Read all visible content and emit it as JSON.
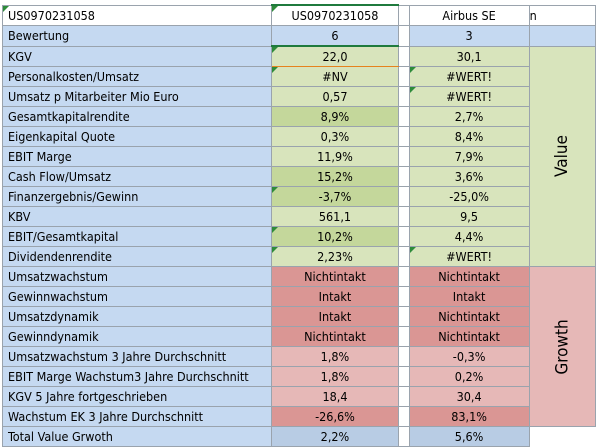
{
  "sheet": {
    "header": {
      "label": "US0970231058",
      "col1": "US0970231058",
      "col2": "Airbus SE",
      "col2_extra": "n"
    },
    "colors": {
      "label_bg": "#c5d9f1",
      "value_green": "#d8e4bc",
      "value_green_strong": "#c4d79b",
      "growth_pink": "#e6b8b7",
      "growth_red": "#da9694",
      "total_blue": "#b8cce4"
    },
    "side_labels": {
      "value": "Value",
      "growth": "Growth"
    },
    "rows": [
      {
        "label": "Bewertung",
        "v1": "6",
        "v2": "3"
      },
      {
        "label": "KGV",
        "v1": "22,0",
        "v2": "30,1"
      },
      {
        "label": "Personalkosten/Umsatz",
        "v1": "#NV",
        "v2": "#WERT!"
      },
      {
        "label": "Umsatz p Mitarbeiter Mio Euro",
        "v1": "0,57",
        "v2": "#WERT!"
      },
      {
        "label": "Gesamtkapitalrendite",
        "v1": "8,9%",
        "v2": "2,7%"
      },
      {
        "label": "Eigenkapital Quote",
        "v1": "0,3%",
        "v2": "8,4%"
      },
      {
        "label": "EBIT Marge",
        "v1": "11,9%",
        "v2": "7,9%"
      },
      {
        "label": "Cash Flow/Umsatz",
        "v1": "15,2%",
        "v2": "3,6%"
      },
      {
        "label": "Finanzergebnis/Gewinn",
        "v1": "-3,7%",
        "v2": "-25,0%"
      },
      {
        "label": "KBV",
        "v1": "561,1",
        "v2": "9,5"
      },
      {
        "label": "EBIT/Gesamtkapital",
        "v1": "10,2%",
        "v2": "4,4%"
      },
      {
        "label": "Dividendenrendite",
        "v1": "2,23%",
        "v2": "#WERT!"
      },
      {
        "label": "Umsatzwachstum",
        "v1": "Nichtintakt",
        "v2": "Nichtintakt"
      },
      {
        "label": "Gewinnwachstum",
        "v1": "Intakt",
        "v2": "Intakt"
      },
      {
        "label": "Umsatzdynamik",
        "v1": "Intakt",
        "v2": "Nichtintakt"
      },
      {
        "label": "Gewinndynamik",
        "v1": "Nichtintakt",
        "v2": "Nichtintakt"
      },
      {
        "label": "Umsatzwachstum 3 Jahre Durchschnitt",
        "v1": "1,8%",
        "v2": "-0,3%"
      },
      {
        "label": "EBIT Marge Wachstum3 Jahre Durchschnitt",
        "v1": "1,8%",
        "v2": "0,2%"
      },
      {
        "label": "KGV 5 Jahre fortgeschrieben",
        "v1": "18,4",
        "v2": "30,4"
      },
      {
        "label": "Wachstum EK 3 Jahre Durchschnitt",
        "v1": "-26,6%",
        "v2": "83,1%"
      },
      {
        "label": "Total Value Grwoth",
        "v1": "2,2%",
        "v2": "5,6%"
      }
    ]
  }
}
